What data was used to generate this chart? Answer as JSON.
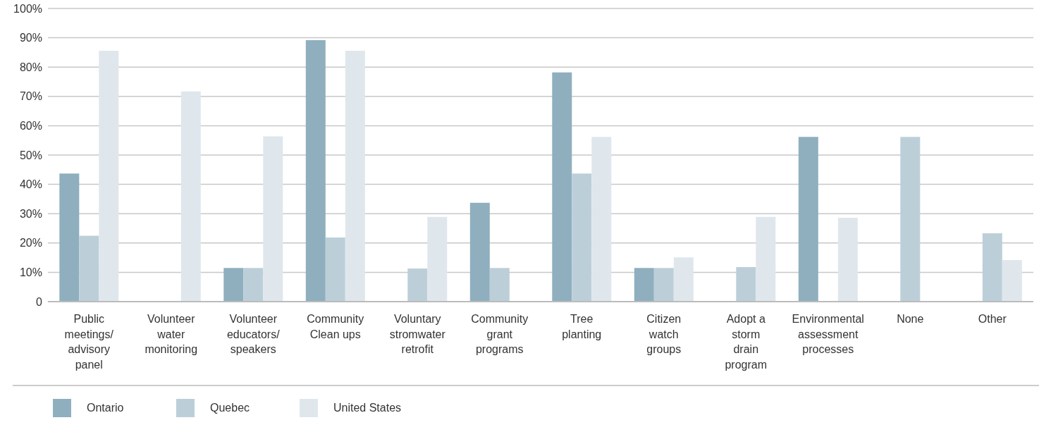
{
  "chart_data": {
    "type": "bar",
    "categories": [
      "Public meetings/ advisory panel",
      "Volunteer water monitoring",
      "Volunteer educators/ speakers",
      "Community Clean ups",
      "Voluntary stromwater retrofit",
      "Community grant programs",
      "Tree planting",
      "Citizen watch groups",
      "Adopt a storm drain program",
      "Environmental assessment processes",
      "None",
      "Other"
    ],
    "series": [
      {
        "name": "Ontario",
        "color": "#8fafbf",
        "values": [
          43.7,
          null,
          11.5,
          89.2,
          null,
          33.7,
          78.2,
          11.5,
          null,
          56.2,
          null,
          null
        ]
      },
      {
        "name": "Quebec",
        "color": "#bccfd9",
        "values": [
          22.5,
          null,
          11.5,
          21.9,
          11.3,
          11.5,
          43.7,
          11.5,
          11.8,
          null,
          56.2,
          23.3
        ]
      },
      {
        "name": "United States",
        "color": "#dfe7ed",
        "values": [
          85.6,
          71.7,
          56.4,
          85.6,
          28.9,
          null,
          56.2,
          15.1,
          28.9,
          28.6,
          null,
          14.2
        ]
      }
    ],
    "ylim": [
      0,
      100
    ],
    "yticks": [
      0,
      {
        "value": 10,
        "label": "10%"
      },
      {
        "value": 20,
        "label": "20%"
      },
      {
        "value": 30,
        "label": "30%"
      },
      {
        "value": 40,
        "label": "40%"
      },
      {
        "value": 50,
        "label": "50%"
      },
      {
        "value": 60,
        "label": "60%"
      },
      {
        "value": 70,
        "label": "70%"
      },
      {
        "value": 80,
        "label": "80%"
      },
      {
        "value": 90,
        "label": "90%"
      },
      {
        "value": 100,
        "label": "100%"
      }
    ],
    "grid": "y",
    "legend": "bottom left"
  }
}
